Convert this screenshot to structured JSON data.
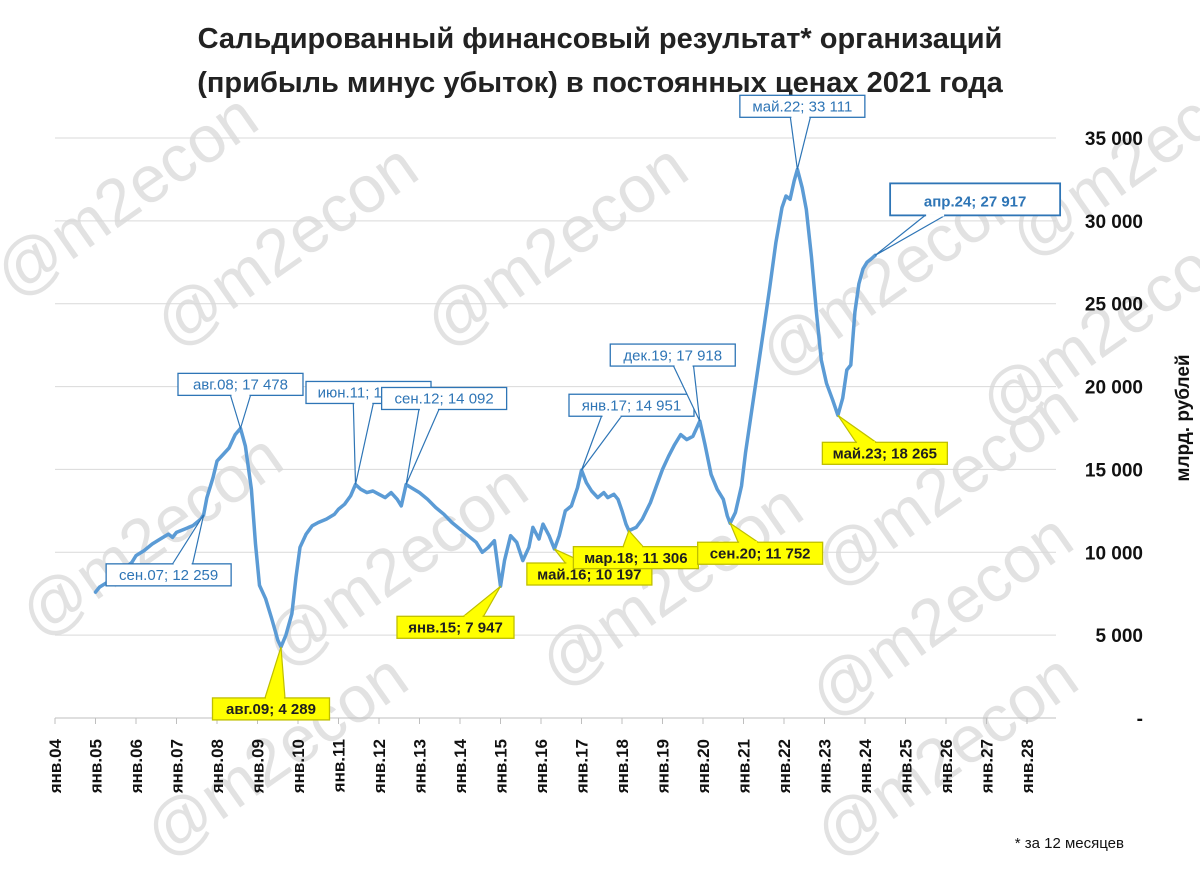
{
  "chart_data": {
    "type": "line",
    "title": [
      "Сальдированный финансовый результат* организаций",
      "(прибыль минус убыток) в постоянных ценах 2021 года"
    ],
    "ylabel": "млрд. рублей",
    "footnote": "* за 12 месяцев",
    "watermark": "@m2econ",
    "ylim": [
      0,
      35000
    ],
    "y_ticks": [
      "-",
      "5 000",
      "10 000",
      "15 000",
      "20 000",
      "25 000",
      "30 000",
      "35 000"
    ],
    "y_axis_side": "right",
    "grid": "horizontal",
    "x_ticks": [
      "янв.04",
      "янв.05",
      "янв.06",
      "янв.07",
      "янв.08",
      "янв.09",
      "янв.10",
      "янв.11",
      "янв.12",
      "янв.13",
      "янв.14",
      "янв.15",
      "янв.16",
      "янв.17",
      "янв.18",
      "янв.19",
      "янв.20",
      "янв.21",
      "янв.22",
      "янв.23",
      "янв.24",
      "янв.25",
      "янв.26",
      "янв.27",
      "янв.28"
    ],
    "colors": {
      "line": "#5b9bd5",
      "callout_border": "#2e75b6",
      "callout_text": "#2e75b6",
      "callout_yellow": "#ffff00",
      "grid": "#d9d9d9"
    },
    "series": [
      {
        "points": [
          [
            2005.0,
            7600
          ],
          [
            2005.1,
            7900
          ],
          [
            2005.3,
            8200
          ],
          [
            2005.5,
            8600
          ],
          [
            2005.7,
            9000
          ],
          [
            2005.9,
            9400
          ],
          [
            2006.0,
            9800
          ],
          [
            2006.2,
            10100
          ],
          [
            2006.4,
            10500
          ],
          [
            2006.6,
            10800
          ],
          [
            2006.8,
            11100
          ],
          [
            2006.9,
            10900
          ],
          [
            2007.0,
            11200
          ],
          [
            2007.2,
            11400
          ],
          [
            2007.4,
            11600
          ],
          [
            2007.6,
            12000
          ],
          [
            2007.67,
            12259
          ],
          [
            2007.75,
            13300
          ],
          [
            2007.9,
            14500
          ],
          [
            2008.0,
            15500
          ],
          [
            2008.15,
            15900
          ],
          [
            2008.3,
            16300
          ],
          [
            2008.45,
            17100
          ],
          [
            2008.58,
            17478
          ],
          [
            2008.7,
            16400
          ],
          [
            2008.85,
            13800
          ],
          [
            2008.95,
            10500
          ],
          [
            2009.05,
            8000
          ],
          [
            2009.2,
            7200
          ],
          [
            2009.35,
            6000
          ],
          [
            2009.5,
            4700
          ],
          [
            2009.58,
            4289
          ],
          [
            2009.7,
            5000
          ],
          [
            2009.85,
            6300
          ],
          [
            2009.95,
            8500
          ],
          [
            2010.05,
            10300
          ],
          [
            2010.2,
            11100
          ],
          [
            2010.35,
            11600
          ],
          [
            2010.5,
            11800
          ],
          [
            2010.7,
            12000
          ],
          [
            2010.9,
            12300
          ],
          [
            2011.0,
            12600
          ],
          [
            2011.15,
            12900
          ],
          [
            2011.3,
            13400
          ],
          [
            2011.42,
            14093
          ],
          [
            2011.55,
            13800
          ],
          [
            2011.7,
            13600
          ],
          [
            2011.85,
            13700
          ],
          [
            2012.0,
            13500
          ],
          [
            2012.15,
            13300
          ],
          [
            2012.3,
            13600
          ],
          [
            2012.45,
            13200
          ],
          [
            2012.55,
            12800
          ],
          [
            2012.67,
            14092
          ],
          [
            2012.8,
            13900
          ],
          [
            2013.0,
            13600
          ],
          [
            2013.2,
            13200
          ],
          [
            2013.4,
            12700
          ],
          [
            2013.6,
            12300
          ],
          [
            2013.8,
            11800
          ],
          [
            2014.0,
            11400
          ],
          [
            2014.2,
            11000
          ],
          [
            2014.4,
            10600
          ],
          [
            2014.55,
            10000
          ],
          [
            2014.7,
            10300
          ],
          [
            2014.85,
            10700
          ],
          [
            2015.0,
            7947
          ],
          [
            2015.1,
            9500
          ],
          [
            2015.25,
            11000
          ],
          [
            2015.4,
            10600
          ],
          [
            2015.55,
            9500
          ],
          [
            2015.7,
            10300
          ],
          [
            2015.8,
            11500
          ],
          [
            2015.95,
            10800
          ],
          [
            2016.05,
            11700
          ],
          [
            2016.2,
            11000
          ],
          [
            2016.33,
            10197
          ],
          [
            2016.45,
            11000
          ],
          [
            2016.6,
            12500
          ],
          [
            2016.75,
            12800
          ],
          [
            2016.9,
            13900
          ],
          [
            2017.0,
            14951
          ],
          [
            2017.12,
            14200
          ],
          [
            2017.25,
            13700
          ],
          [
            2017.4,
            13300
          ],
          [
            2017.55,
            13600
          ],
          [
            2017.65,
            13300
          ],
          [
            2017.8,
            13500
          ],
          [
            2017.9,
            13200
          ],
          [
            2018.0,
            12500
          ],
          [
            2018.1,
            11700
          ],
          [
            2018.17,
            11306
          ],
          [
            2018.35,
            11500
          ],
          [
            2018.5,
            12000
          ],
          [
            2018.7,
            13000
          ],
          [
            2018.85,
            14000
          ],
          [
            2019.0,
            15000
          ],
          [
            2019.15,
            15800
          ],
          [
            2019.3,
            16500
          ],
          [
            2019.45,
            17100
          ],
          [
            2019.6,
            16800
          ],
          [
            2019.75,
            17000
          ],
          [
            2019.92,
            17918
          ],
          [
            2020.05,
            16500
          ],
          [
            2020.2,
            14700
          ],
          [
            2020.35,
            13800
          ],
          [
            2020.5,
            13200
          ],
          [
            2020.6,
            12200
          ],
          [
            2020.67,
            11752
          ],
          [
            2020.8,
            12400
          ],
          [
            2020.95,
            14000
          ],
          [
            2021.05,
            16000
          ],
          [
            2021.2,
            18500
          ],
          [
            2021.35,
            21000
          ],
          [
            2021.5,
            23500
          ],
          [
            2021.65,
            26000
          ],
          [
            2021.8,
            28700
          ],
          [
            2021.95,
            30800
          ],
          [
            2022.05,
            31500
          ],
          [
            2022.15,
            31300
          ],
          [
            2022.25,
            32400
          ],
          [
            2022.33,
            33111
          ],
          [
            2022.45,
            32000
          ],
          [
            2022.55,
            30700
          ],
          [
            2022.68,
            27800
          ],
          [
            2022.8,
            24500
          ],
          [
            2022.92,
            21600
          ],
          [
            2023.05,
            20200
          ],
          [
            2023.2,
            19200
          ],
          [
            2023.33,
            18265
          ],
          [
            2023.45,
            19300
          ],
          [
            2023.55,
            21000
          ],
          [
            2023.65,
            21300
          ],
          [
            2023.75,
            24500
          ],
          [
            2023.85,
            26200
          ],
          [
            2023.95,
            27100
          ],
          [
            2024.05,
            27500
          ],
          [
            2024.15,
            27700
          ],
          [
            2024.25,
            27917
          ]
        ]
      }
    ],
    "annotations": [
      {
        "label": "авг.08;  17 478",
        "x": 2008.58,
        "y": 17478,
        "style": "outline"
      },
      {
        "label": "сен.07;  12 259",
        "x": 2007.67,
        "y": 12259,
        "style": "outline"
      },
      {
        "label": "авг.09;  4 289",
        "x": 2009.58,
        "y": 4289,
        "style": "yellow"
      },
      {
        "label": "июн.11;  14 093",
        "x": 2011.42,
        "y": 14093,
        "style": "outline"
      },
      {
        "label": "сен.12;  14 092",
        "x": 2012.67,
        "y": 14092,
        "style": "outline"
      },
      {
        "label": "янв.15;  7 947",
        "x": 2015.0,
        "y": 7947,
        "style": "yellow"
      },
      {
        "label": "май.16;  10 197",
        "x": 2016.33,
        "y": 10197,
        "style": "yellow"
      },
      {
        "label": "янв.17;  14 951",
        "x": 2017.0,
        "y": 14951,
        "style": "outline"
      },
      {
        "label": "мар.18;  11 306",
        "x": 2018.17,
        "y": 11306,
        "style": "yellow"
      },
      {
        "label": "дек.19;  17 918",
        "x": 2019.92,
        "y": 17918,
        "style": "outline"
      },
      {
        "label": "сен.20;  11 752",
        "x": 2020.67,
        "y": 11752,
        "style": "yellow"
      },
      {
        "label": "май.22;  33 111",
        "x": 2022.33,
        "y": 33111,
        "style": "outline"
      },
      {
        "label": "май.23;  18 265",
        "x": 2023.33,
        "y": 18265,
        "style": "yellow"
      },
      {
        "label": "апр.24;  27 917",
        "x": 2024.25,
        "y": 27917,
        "style": "outline-large"
      }
    ]
  }
}
